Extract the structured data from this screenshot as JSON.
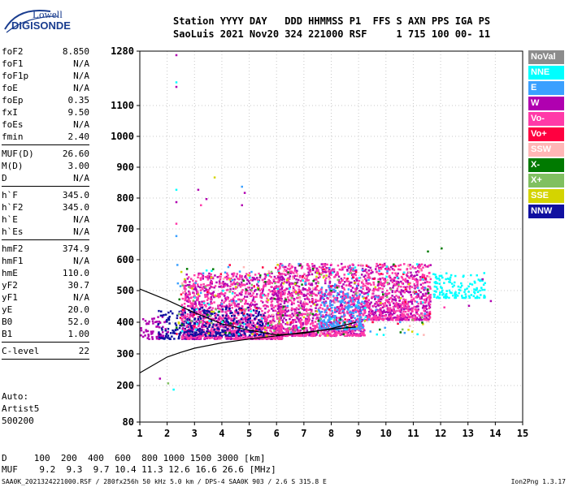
{
  "logo": {
    "line1": "Lowell",
    "line2": "DIGISONDE"
  },
  "header": {
    "line1": "Station YYYY DAY   DDD HHMMSS P1  FFS S AXN PPS IGA PS",
    "line2": "SaoLuis 2021 Nov20 324 221000 RSF     1 715 100 00- 11"
  },
  "params_group1": [
    {
      "label": "foF2",
      "value": "8.850"
    },
    {
      "label": "foF1",
      "value": "N/A"
    },
    {
      "label": "foF1p",
      "value": "N/A"
    },
    {
      "label": "foE",
      "value": "N/A"
    },
    {
      "label": "foEp",
      "value": "0.35"
    },
    {
      "label": "fxI",
      "value": "9.50"
    },
    {
      "label": "foEs",
      "value": "N/A"
    },
    {
      "label": "fmin",
      "value": "2.40"
    }
  ],
  "params_group2": [
    {
      "label": "MUF(D)",
      "value": "26.60"
    },
    {
      "label": "M(D)",
      "value": "3.00"
    },
    {
      "label": "D",
      "value": "N/A"
    }
  ],
  "params_group3": [
    {
      "label": "h`F",
      "value": "345.0"
    },
    {
      "label": "h`F2",
      "value": "345.0"
    },
    {
      "label": "h`E",
      "value": "N/A"
    },
    {
      "label": "h`Es",
      "value": "N/A"
    }
  ],
  "params_group4": [
    {
      "label": "hmF2",
      "value": "374.9"
    },
    {
      "label": "hmF1",
      "value": "N/A"
    },
    {
      "label": "hmE",
      "value": "110.0"
    },
    {
      "label": "yF2",
      "value": "30.7"
    },
    {
      "label": "yF1",
      "value": "N/A"
    },
    {
      "label": "yE",
      "value": "20.0"
    },
    {
      "label": "B0",
      "value": "52.0"
    },
    {
      "label": "B1",
      "value": "1.00"
    }
  ],
  "params_group5": [
    {
      "label": "C-level",
      "value": "22"
    }
  ],
  "autoscale": {
    "line1": "Auto:",
    "line2": "Artist5",
    "line3": "500200"
  },
  "distance_muf": {
    "d_line": "D     100  200  400  600  800 1000 1500 3000 [km]",
    "muf_line": "MUF    9.2  9.3  9.7 10.4 11.3 12.6 16.6 26.6 [MHz]"
  },
  "footer": {
    "left": "SAA0K_2021324221000.RSF / 280fx256h 50 kHz 5.0 km / DPS-4 SAA0K 903 / 2.6 S 315.8 E",
    "right": "Ion2Png 1.3.17"
  },
  "legend": [
    {
      "label": "NoVal",
      "color": "#8c8c8c"
    },
    {
      "label": "NNE",
      "color": "#00ffff"
    },
    {
      "label": "E",
      "color": "#3aa0ff"
    },
    {
      "label": "W",
      "color": "#b000b0"
    },
    {
      "label": "Vo-",
      "color": "#ff3aa8"
    },
    {
      "label": "Vo+",
      "color": "#ff0040"
    },
    {
      "label": "SSW",
      "color": "#ffb6b6"
    },
    {
      "label": "X-",
      "color": "#007a00"
    },
    {
      "label": "X+",
      "color": "#80c060"
    },
    {
      "label": "SSE",
      "color": "#d4d400"
    },
    {
      "label": "NNW",
      "color": "#1010a0"
    }
  ],
  "chart_data": {
    "type": "scatter",
    "x_ticks": [
      1,
      2,
      3,
      4,
      5,
      6,
      7,
      8,
      9,
      10,
      11,
      12,
      13,
      14,
      15
    ],
    "y_ticks": [
      80,
      200,
      300,
      400,
      500,
      600,
      700,
      800,
      900,
      1000,
      1100,
      1280
    ],
    "x_tick_labels": [
      "1",
      "2",
      "3",
      "4",
      "5",
      "6",
      "7",
      "8",
      "9",
      "10",
      "11",
      "12",
      "13",
      "14",
      "15"
    ],
    "y_tick_labels": [
      "80",
      "200",
      "300",
      "400",
      "500",
      "600",
      "700",
      "800",
      "900",
      "1000",
      "1100",
      "1280"
    ],
    "grid": true,
    "echo_regions": [
      {
        "f0": 1.0,
        "f1": 2.0,
        "h0": 350,
        "h1": 420,
        "color": "W"
      },
      {
        "f0": 1.6,
        "f1": 3.0,
        "h0": 350,
        "h1": 440,
        "color": "NNW"
      },
      {
        "f0": 2.5,
        "f1": 6.2,
        "h0": 350,
        "h1": 560,
        "color": "W"
      },
      {
        "f0": 2.5,
        "f1": 6.2,
        "h0": 350,
        "h1": 560,
        "color": "Vo-"
      },
      {
        "f0": 2.6,
        "f1": 5.5,
        "h0": 360,
        "h1": 450,
        "color": "NNW"
      },
      {
        "f0": 6.0,
        "f1": 9.2,
        "h0": 360,
        "h1": 590,
        "color": "W"
      },
      {
        "f0": 6.0,
        "f1": 9.2,
        "h0": 360,
        "h1": 590,
        "color": "Vo-"
      },
      {
        "f0": 7.5,
        "f1": 9.2,
        "h0": 380,
        "h1": 520,
        "color": "E"
      },
      {
        "f0": 9.2,
        "f1": 11.6,
        "h0": 410,
        "h1": 590,
        "color": "W"
      },
      {
        "f0": 9.2,
        "f1": 11.6,
        "h0": 410,
        "h1": 590,
        "color": "Vo-"
      },
      {
        "f0": 11.7,
        "f1": 13.6,
        "h0": 480,
        "h1": 560,
        "color": "NNE"
      }
    ],
    "scatter_points": [
      {
        "x": 2.3,
        "y": 1270,
        "color": "W"
      },
      {
        "x": 2.3,
        "y": 1180,
        "color": "NNE"
      },
      {
        "x": 2.3,
        "y": 1165,
        "color": "W"
      },
      {
        "x": 2.3,
        "y": 830,
        "color": "NNE"
      },
      {
        "x": 2.3,
        "y": 790,
        "color": "W"
      },
      {
        "x": 2.3,
        "y": 720,
        "color": "Vo-"
      },
      {
        "x": 2.3,
        "y": 680,
        "color": "E"
      },
      {
        "x": 3.1,
        "y": 830,
        "color": "W"
      },
      {
        "x": 3.2,
        "y": 780,
        "color": "Vo-"
      },
      {
        "x": 3.4,
        "y": 800,
        "color": "W"
      },
      {
        "x": 3.7,
        "y": 870,
        "color": "SSE"
      },
      {
        "x": 4.7,
        "y": 840,
        "color": "E"
      },
      {
        "x": 4.8,
        "y": 820,
        "color": "W"
      },
      {
        "x": 4.7,
        "y": 780,
        "color": "W"
      },
      {
        "x": 2.0,
        "y": 210,
        "color": "X+"
      },
      {
        "x": 2.2,
        "y": 190,
        "color": "NNE"
      },
      {
        "x": 1.7,
        "y": 225,
        "color": "W"
      },
      {
        "x": 11.5,
        "y": 630,
        "color": "X-"
      },
      {
        "x": 12.0,
        "y": 640,
        "color": "X-"
      },
      {
        "x": 13.5,
        "y": 540,
        "color": "W"
      },
      {
        "x": 13.8,
        "y": 470,
        "color": "W"
      },
      {
        "x": 12.1,
        "y": 450,
        "color": "Vo-"
      },
      {
        "x": 13.0,
        "y": 455,
        "color": "W"
      }
    ],
    "trace_lower": [
      [
        1.0,
        240
      ],
      [
        1.5,
        265
      ],
      [
        2.0,
        290
      ],
      [
        2.5,
        305
      ],
      [
        3.0,
        318
      ],
      [
        4.0,
        335
      ],
      [
        5.0,
        347
      ],
      [
        6.0,
        357
      ],
      [
        7.0,
        368
      ],
      [
        8.0,
        378
      ],
      [
        8.9,
        385
      ]
    ],
    "trace_upper": [
      [
        1.0,
        505
      ],
      [
        2.0,
        470
      ],
      [
        3.0,
        430
      ],
      [
        4.0,
        395
      ],
      [
        5.0,
        375
      ],
      [
        6.0,
        360
      ],
      [
        7.0,
        365
      ],
      [
        8.0,
        380
      ],
      [
        8.9,
        400
      ]
    ]
  }
}
